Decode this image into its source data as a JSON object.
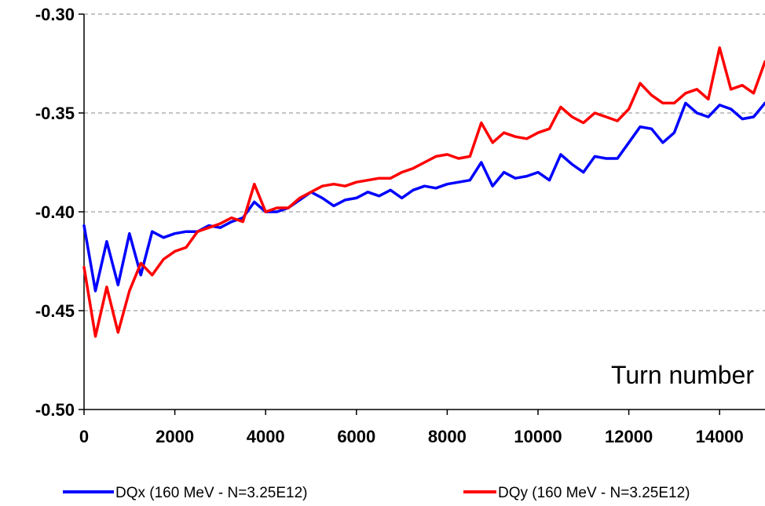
{
  "chart_data": {
    "type": "line",
    "title": "",
    "xlabel": "",
    "ylabel": "",
    "annotation": "Turn number",
    "xlim": [
      0,
      15000
    ],
    "ylim": [
      -0.5,
      -0.3
    ],
    "x_ticks": [
      0,
      2000,
      4000,
      6000,
      8000,
      10000,
      12000,
      14000
    ],
    "x_tick_labels": [
      "0",
      "2000",
      "4000",
      "6000",
      "8000",
      "10000",
      "12000",
      "14000"
    ],
    "y_ticks": [
      -0.3,
      -0.35,
      -0.4,
      -0.45,
      -0.5
    ],
    "y_tick_labels": [
      "-0.30",
      "-0.35",
      "-0.40",
      "-0.45",
      "-0.50"
    ],
    "grid": "horizontal dashed",
    "legend_position": "bottom",
    "series": [
      {
        "name": "DQx (160 MeV - N=3.25E12)",
        "color": "#0000ff",
        "x": [
          0,
          250,
          500,
          750,
          1000,
          1250,
          1500,
          1750,
          2000,
          2250,
          2500,
          2750,
          3000,
          3250,
          3500,
          3750,
          4000,
          4250,
          4500,
          4750,
          5000,
          5250,
          5500,
          5750,
          6000,
          6250,
          6500,
          6750,
          7000,
          7250,
          7500,
          7750,
          8000,
          8250,
          8500,
          8750,
          9000,
          9250,
          9500,
          9750,
          10000,
          10250,
          10500,
          10750,
          11000,
          11250,
          11500,
          11750,
          12000,
          12250,
          12500,
          12750,
          13000,
          13250,
          13500,
          13750,
          14000,
          14250,
          14500,
          14750,
          15000
        ],
        "values": [
          -0.407,
          -0.44,
          -0.415,
          -0.437,
          -0.411,
          -0.432,
          -0.41,
          -0.413,
          -0.411,
          -0.41,
          -0.41,
          -0.407,
          -0.408,
          -0.405,
          -0.403,
          -0.395,
          -0.4,
          -0.4,
          -0.398,
          -0.394,
          -0.39,
          -0.393,
          -0.397,
          -0.394,
          -0.393,
          -0.39,
          -0.392,
          -0.389,
          -0.393,
          -0.389,
          -0.387,
          -0.388,
          -0.386,
          -0.385,
          -0.384,
          -0.375,
          -0.387,
          -0.38,
          -0.383,
          -0.382,
          -0.38,
          -0.384,
          -0.371,
          -0.376,
          -0.38,
          -0.372,
          -0.373,
          -0.373,
          -0.365,
          -0.357,
          -0.358,
          -0.365,
          -0.36,
          -0.345,
          -0.35,
          -0.352,
          -0.346,
          -0.348,
          -0.353,
          -0.352,
          -0.345
        ]
      },
      {
        "name": "DQy (160 MeV - N=3.25E12)",
        "color": "#ff0000",
        "x": [
          0,
          250,
          500,
          750,
          1000,
          1250,
          1500,
          1750,
          2000,
          2250,
          2500,
          2750,
          3000,
          3250,
          3500,
          3750,
          4000,
          4250,
          4500,
          4750,
          5000,
          5250,
          5500,
          5750,
          6000,
          6250,
          6500,
          6750,
          7000,
          7250,
          7500,
          7750,
          8000,
          8250,
          8500,
          8750,
          9000,
          9250,
          9500,
          9750,
          10000,
          10250,
          10500,
          10750,
          11000,
          11250,
          11500,
          11750,
          12000,
          12250,
          12500,
          12750,
          13000,
          13250,
          13500,
          13750,
          14000,
          14250,
          14500,
          14750,
          15000
        ],
        "values": [
          -0.428,
          -0.463,
          -0.438,
          -0.461,
          -0.44,
          -0.426,
          -0.432,
          -0.424,
          -0.42,
          -0.418,
          -0.41,
          -0.408,
          -0.406,
          -0.403,
          -0.405,
          -0.386,
          -0.4,
          -0.398,
          -0.398,
          -0.393,
          -0.39,
          -0.387,
          -0.386,
          -0.387,
          -0.385,
          -0.384,
          -0.383,
          -0.383,
          -0.38,
          -0.378,
          -0.375,
          -0.372,
          -0.371,
          -0.373,
          -0.372,
          -0.355,
          -0.365,
          -0.36,
          -0.362,
          -0.363,
          -0.36,
          -0.358,
          -0.347,
          -0.352,
          -0.355,
          -0.35,
          -0.352,
          -0.354,
          -0.348,
          -0.335,
          -0.341,
          -0.345,
          -0.345,
          -0.34,
          -0.338,
          -0.343,
          -0.317,
          -0.338,
          -0.336,
          -0.34,
          -0.324
        ]
      }
    ]
  }
}
